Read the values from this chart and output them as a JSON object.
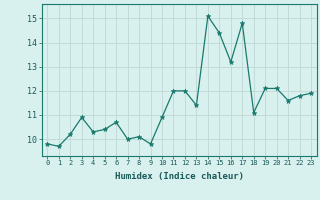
{
  "x": [
    0,
    1,
    2,
    3,
    4,
    5,
    6,
    7,
    8,
    9,
    10,
    11,
    12,
    13,
    14,
    15,
    16,
    17,
    18,
    19,
    20,
    21,
    22,
    23
  ],
  "y": [
    9.8,
    9.7,
    10.2,
    10.9,
    10.3,
    10.4,
    10.7,
    10.0,
    10.1,
    9.8,
    10.9,
    12.0,
    12.0,
    11.4,
    15.1,
    14.4,
    13.2,
    14.8,
    11.1,
    12.1,
    12.1,
    11.6,
    11.8,
    11.9
  ],
  "line_color": "#1a7a6e",
  "marker": "*",
  "marker_size": 3.5,
  "bg_color": "#d8f0ee",
  "grid_color": "#c0d8d4",
  "xlabel": "Humidex (Indice chaleur)",
  "ylim": [
    9.3,
    15.6
  ],
  "xlim": [
    -0.5,
    23.5
  ],
  "yticks": [
    10,
    11,
    12,
    13,
    14,
    15
  ],
  "xticks": [
    0,
    1,
    2,
    3,
    4,
    5,
    6,
    7,
    8,
    9,
    10,
    11,
    12,
    13,
    14,
    15,
    16,
    17,
    18,
    19,
    20,
    21,
    22,
    23
  ],
  "xtick_labels": [
    "0",
    "1",
    "2",
    "3",
    "4",
    "5",
    "6",
    "7",
    "8",
    "9",
    "10",
    "11",
    "12",
    "13",
    "14",
    "15",
    "16",
    "17",
    "18",
    "19",
    "20",
    "21",
    "22",
    "23"
  ],
  "ytick_labels": [
    "10",
    "11",
    "12",
    "13",
    "14",
    "15"
  ]
}
